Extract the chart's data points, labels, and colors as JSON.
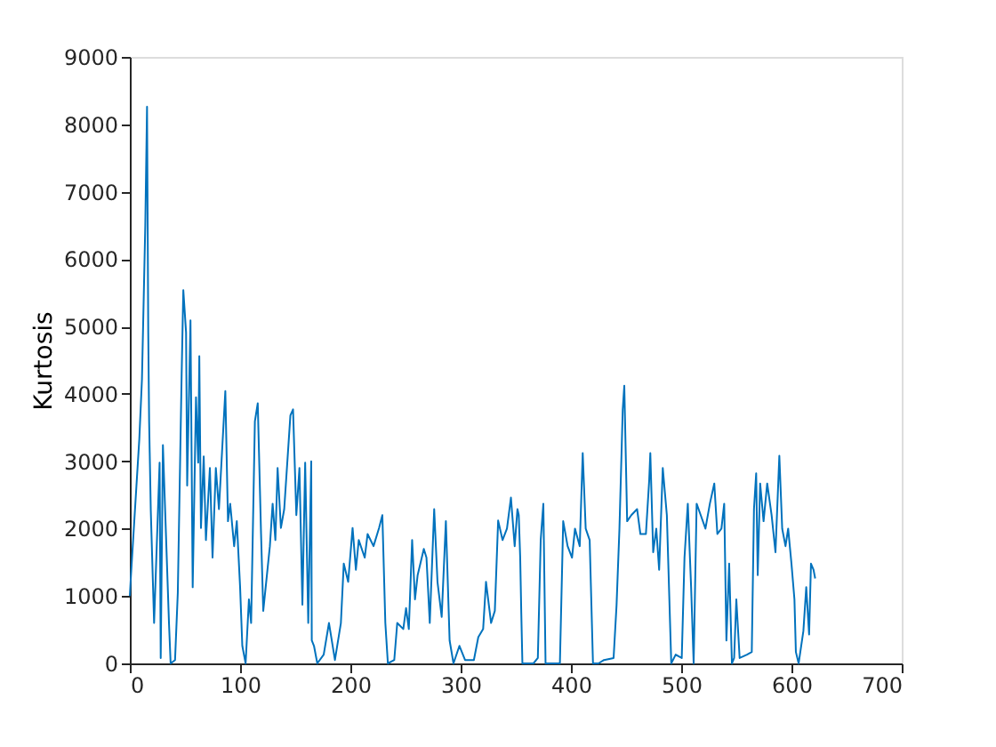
{
  "chart_data": {
    "type": "line",
    "ylabel": "Kurtosis",
    "x": [
      0,
      1,
      6,
      8.6,
      11,
      14,
      15.6,
      16.7,
      17.5,
      19,
      22,
      27,
      28,
      30,
      35.5,
      37,
      41,
      43.5,
      47,
      48.5,
      51,
      52,
      55,
      57,
      60,
      62,
      63,
      64.5,
      67,
      69,
      72.6,
      75,
      78,
      80.8,
      86.6,
      89,
      91,
      94.6,
      97,
      100,
      102,
      105,
      108,
      110,
      113.4,
      116,
      119,
      121,
      127,
      129.5,
      132,
      134,
      137,
      140,
      145.6,
      148,
      151,
      153.8,
      156.5,
      159,
      161.8,
      164.5,
      165,
      167,
      170,
      175.8,
      180.6,
      186,
      191.4,
      194,
      198,
      202,
      205,
      207.6,
      213,
      215.6,
      221,
      226,
      229,
      231.7,
      234,
      239.8,
      242.5,
      248,
      250.5,
      253,
      256,
      258.6,
      261,
      266.6,
      269,
      272,
      276,
      279,
      282.8,
      286.6,
      290,
      293.5,
      298.9,
      304,
      312,
      316,
      320.4,
      323,
      327.6,
      331,
      334,
      338,
      342,
      345.6,
      349,
      351.5,
      352.7,
      354,
      355,
      356,
      366,
      370,
      372.6,
      375,
      377,
      390,
      393,
      397,
      401,
      403.7,
      408,
      410.7,
      413.4,
      417,
      420,
      425,
      430,
      438.7,
      441.4,
      444,
      447,
      448.4,
      451,
      454.8,
      460,
      463,
      468,
      471,
      472,
      474.6,
      477.4,
      480,
      483.3,
      487,
      491,
      495,
      500.5,
      503,
      506,
      509,
      511.3,
      514,
      517.7,
      522,
      526,
      530,
      532.8,
      536.5,
      539,
      541,
      543.5,
      546,
      548,
      550,
      553,
      559.7,
      564,
      566,
      568,
      569.4,
      571.6,
      574.7,
      578,
      582,
      585.5,
      589,
      591.6,
      594.6,
      597,
      600,
      602.7,
      604,
      606.5,
      610.8,
      613.4,
      616,
      617.7,
      620,
      621.5
    ],
    "series": [
      {
        "color": "#0072bd",
        "values": [
          1000,
          1300,
          2640,
          3330,
          4220,
          6490,
          8260,
          4910,
          3590,
          2270,
          600,
          2980,
          80,
          3240,
          600,
          0,
          50,
          1050,
          4300,
          5540,
          4910,
          2640,
          5090,
          1130,
          3950,
          2980,
          4560,
          2010,
          3070,
          1830,
          2900,
          1570,
          2900,
          2290,
          4040,
          2110,
          2370,
          1740,
          2110,
          1130,
          260,
          0,
          950,
          600,
          3590,
          3860,
          1920,
          780,
          1740,
          2370,
          1830,
          2900,
          2010,
          2290,
          3680,
          3770,
          2200,
          2900,
          870,
          2980,
          600,
          3000,
          340,
          260,
          0,
          130,
          600,
          50,
          600,
          1480,
          1210,
          2010,
          1390,
          1830,
          1570,
          1920,
          1740,
          2010,
          2200,
          600,
          0,
          50,
          600,
          510,
          820,
          510,
          1830,
          950,
          1310,
          1700,
          1570,
          600,
          2290,
          1210,
          690,
          2110,
          340,
          0,
          260,
          50,
          50,
          390,
          510,
          1210,
          600,
          780,
          2120,
          1830,
          2000,
          2460,
          1740,
          2290,
          2200,
          1570,
          740,
          0,
          0,
          80,
          1830,
          2370,
          0,
          0,
          2110,
          1740,
          1570,
          2000,
          1740,
          3120,
          2000,
          1830,
          0,
          0,
          50,
          80,
          870,
          2000,
          3770,
          4120,
          2110,
          2200,
          2290,
          1920,
          1920,
          2720,
          3120,
          1650,
          2000,
          1390,
          2900,
          2200,
          0,
          130,
          80,
          1570,
          2370,
          1130,
          0,
          2370,
          2200,
          2000,
          2370,
          2670,
          1920,
          2000,
          2370,
          340,
          1480,
          0,
          80,
          950,
          80,
          130,
          170,
          2290,
          2820,
          1310,
          2670,
          2110,
          2670,
          2200,
          1650,
          3080,
          2000,
          1740,
          2000,
          1480,
          950,
          170,
          0,
          480,
          1130,
          430,
          1480,
          1390,
          1260
        ]
      }
    ],
    "xlim": [
      0,
      700
    ],
    "xticks": [
      0,
      100,
      200,
      300,
      400,
      500,
      600,
      700
    ],
    "ylim": [
      0,
      9000
    ],
    "yticks": [
      0,
      1000,
      2000,
      3000,
      4000,
      5000,
      6000,
      7000,
      8000,
      9000
    ],
    "grid": false,
    "legend": false,
    "marker": "none",
    "line_style": "solid"
  }
}
